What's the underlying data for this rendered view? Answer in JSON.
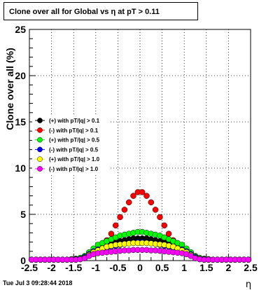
{
  "title": "Clone  over all for Global vs   η at pT > 0.11",
  "timestamp": "Tue Jul  3 09:28:44 2018",
  "chart_data": {
    "type": "scatter",
    "xlabel": "η",
    "ylabel": "Clone  over all (%)",
    "xlim": [
      -2.5,
      2.5
    ],
    "ylim": [
      0,
      25
    ],
    "grid": true,
    "legend_position": "left",
    "x_ticks": [
      "-2.5",
      "-2",
      "-1.5",
      "-1",
      "-0.5",
      "0",
      "0.5",
      "1",
      "1.5",
      "2",
      "2.5"
    ],
    "y_ticks": [
      "0",
      "5",
      "10",
      "15",
      "20",
      "25"
    ],
    "x": [
      -2.45,
      -2.35,
      -2.25,
      -2.15,
      -2.05,
      -1.95,
      -1.85,
      -1.75,
      -1.65,
      -1.55,
      -1.45,
      -1.35,
      -1.25,
      -1.15,
      -1.05,
      -0.95,
      -0.85,
      -0.75,
      -0.65,
      -0.55,
      -0.45,
      -0.35,
      -0.25,
      -0.15,
      -0.05,
      0.05,
      0.15,
      0.25,
      0.35,
      0.45,
      0.55,
      0.65,
      0.75,
      0.85,
      0.95,
      1.05,
      1.15,
      1.25,
      1.35,
      1.45,
      1.55,
      1.65,
      1.75,
      1.85,
      1.95,
      2.05,
      2.15,
      2.25,
      2.35,
      2.45
    ],
    "series": [
      {
        "name": "(+) with pT/|q| > 0.1",
        "color": "#000000",
        "values": [
          0.05,
          0.05,
          0.05,
          0.05,
          0.05,
          0.05,
          0.05,
          0.05,
          0.05,
          0.05,
          0.1,
          0.2,
          0.3,
          0.6,
          1.0,
          1.3,
          1.6,
          1.8,
          1.9,
          2.0,
          2.1,
          2.2,
          2.3,
          2.4,
          2.4,
          2.4,
          2.4,
          2.3,
          2.2,
          2.1,
          2.0,
          1.9,
          1.8,
          1.6,
          1.3,
          1.0,
          0.6,
          0.3,
          0.2,
          0.1,
          0.05,
          0.05,
          0.05,
          0.05,
          0.05,
          0.05,
          0.05,
          0.05,
          0.05,
          0.05
        ]
      },
      {
        "name": "(-) with pT/|q| > 0.1",
        "color": "#ff0000",
        "values": [
          0.05,
          0.05,
          0.05,
          0.05,
          0.05,
          0.05,
          0.05,
          0.05,
          0.05,
          0.05,
          0.1,
          0.2,
          0.3,
          0.6,
          1.0,
          1.3,
          1.7,
          2.2,
          2.9,
          3.8,
          4.7,
          5.5,
          6.3,
          7.0,
          7.4,
          7.4,
          7.0,
          6.3,
          5.5,
          4.7,
          3.8,
          2.9,
          2.2,
          1.7,
          1.3,
          1.0,
          0.6,
          0.3,
          0.2,
          0.1,
          0.05,
          0.05,
          0.05,
          0.05,
          0.05,
          0.05,
          0.05,
          0.05,
          0.05,
          0.05
        ]
      },
      {
        "name": "(+) with pT/|q| > 0.5",
        "color": "#00ff00",
        "values": [
          0,
          0,
          0,
          0,
          0,
          0,
          0,
          0.05,
          0.1,
          0.15,
          0.2,
          0.3,
          0.5,
          0.9,
          1.3,
          1.7,
          1.9,
          2.1,
          2.3,
          2.5,
          2.7,
          2.8,
          2.9,
          3.0,
          3.1,
          3.1,
          3.0,
          2.9,
          2.8,
          2.7,
          2.5,
          2.3,
          2.1,
          1.9,
          1.7,
          1.3,
          0.9,
          0.5,
          0.3,
          0.2,
          0.15,
          0.1,
          0.05,
          0,
          0,
          0,
          0,
          0,
          0,
          0
        ]
      },
      {
        "name": "(-) with pT/|q| > 0.5",
        "color": "#0000ff",
        "values": [
          0,
          0,
          0,
          0,
          0,
          0,
          0,
          0,
          0.05,
          0.1,
          0.15,
          0.2,
          0.4,
          0.7,
          1.0,
          1.2,
          1.3,
          1.4,
          1.5,
          1.6,
          1.7,
          1.8,
          1.9,
          1.95,
          2.0,
          2.0,
          1.95,
          1.9,
          1.8,
          1.7,
          1.6,
          1.5,
          1.4,
          1.3,
          1.2,
          1.0,
          0.7,
          0.4,
          0.2,
          0.15,
          0.1,
          0.05,
          0,
          0,
          0,
          0,
          0,
          0,
          0,
          0
        ]
      },
      {
        "name": "(+) with pT/|q| > 1.0",
        "color": "#ffff00",
        "values": [
          0,
          0,
          0,
          0,
          0,
          0,
          0,
          0,
          0,
          0.05,
          0.1,
          0.15,
          0.3,
          0.6,
          0.9,
          1.1,
          1.3,
          1.5,
          1.6,
          1.7,
          1.75,
          1.8,
          1.85,
          1.9,
          1.9,
          1.9,
          1.9,
          1.85,
          1.8,
          1.75,
          1.7,
          1.6,
          1.5,
          1.3,
          1.1,
          0.9,
          0.6,
          0.3,
          0.15,
          0.1,
          0.05,
          0,
          0,
          0,
          0,
          0,
          0,
          0,
          0,
          0
        ]
      },
      {
        "name": "(-) with pT/|q| > 1.0",
        "color": "#ff00ff",
        "values": [
          0,
          0,
          0,
          0,
          0,
          0,
          0,
          0,
          0.05,
          0.05,
          0.1,
          0.15,
          0.25,
          0.5,
          0.7,
          0.8,
          0.85,
          0.9,
          0.95,
          1.0,
          1.05,
          1.1,
          1.1,
          1.15,
          1.15,
          1.15,
          1.15,
          1.1,
          1.1,
          1.05,
          1.0,
          0.95,
          0.9,
          0.85,
          0.8,
          0.7,
          0.5,
          0.25,
          0.15,
          0.1,
          0.05,
          0.05,
          0,
          0,
          0,
          0,
          0,
          0,
          0,
          0
        ]
      }
    ]
  }
}
